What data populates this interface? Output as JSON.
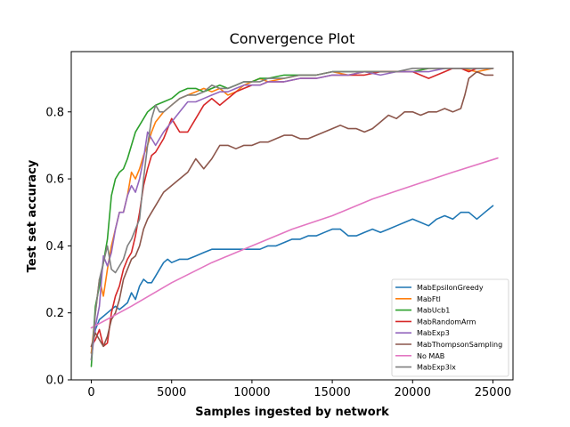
{
  "chart_data": {
    "type": "line",
    "title": "Convergence Plot",
    "xlabel": "Samples ingested by network",
    "ylabel": "Test set accuracy",
    "xlim": [
      -1250,
      26250
    ],
    "ylim": [
      0.0,
      0.98
    ],
    "xticks": [
      0,
      5000,
      10000,
      15000,
      20000,
      25000
    ],
    "yticks": [
      0.0,
      0.2,
      0.4,
      0.6,
      0.8
    ],
    "xtick_labels": [
      "0",
      "5000",
      "10000",
      "15000",
      "20000",
      "25000"
    ],
    "ytick_labels": [
      "0.0",
      "0.2",
      "0.4",
      "0.6",
      "0.8"
    ],
    "grid": false,
    "legend_position": "lower-right",
    "series": [
      {
        "name": "MabEpsilonGreedy",
        "color": "#1f77b4",
        "x": [
          0,
          250,
          500,
          750,
          1000,
          1250,
          1500,
          1750,
          2000,
          2250,
          2500,
          2750,
          3000,
          3250,
          3500,
          3750,
          4000,
          4250,
          4500,
          4750,
          5000,
          5500,
          6000,
          6500,
          7000,
          7500,
          8000,
          8500,
          9000,
          9500,
          10000,
          10500,
          11000,
          11500,
          12000,
          12500,
          13000,
          13500,
          14000,
          14500,
          15000,
          15500,
          16000,
          16500,
          17000,
          17500,
          18000,
          18500,
          19000,
          19500,
          20000,
          20500,
          21000,
          21500,
          22000,
          22500,
          23000,
          23500,
          24000,
          24500,
          25000
        ],
        "y": [
          0.08,
          0.15,
          0.18,
          0.19,
          0.2,
          0.21,
          0.22,
          0.21,
          0.22,
          0.23,
          0.26,
          0.24,
          0.28,
          0.3,
          0.29,
          0.29,
          0.31,
          0.33,
          0.35,
          0.36,
          0.35,
          0.36,
          0.36,
          0.37,
          0.38,
          0.39,
          0.39,
          0.39,
          0.39,
          0.39,
          0.39,
          0.39,
          0.4,
          0.4,
          0.41,
          0.42,
          0.42,
          0.43,
          0.43,
          0.44,
          0.45,
          0.45,
          0.43,
          0.43,
          0.44,
          0.45,
          0.44,
          0.45,
          0.46,
          0.47,
          0.48,
          0.47,
          0.46,
          0.48,
          0.49,
          0.48,
          0.5,
          0.5,
          0.48,
          0.5,
          0.52
        ]
      },
      {
        "name": "MabFtl",
        "color": "#ff7f0e",
        "x": [
          0,
          250,
          500,
          750,
          1000,
          1250,
          1500,
          1750,
          2000,
          2250,
          2500,
          2750,
          3000,
          3250,
          3500,
          3750,
          4000,
          4500,
          5000,
          5500,
          6000,
          6500,
          7000,
          7500,
          8000,
          8500,
          9000,
          9500,
          10000,
          10500,
          11000,
          12000,
          13000,
          14000,
          15000,
          16000,
          17000,
          18000,
          19000,
          20000,
          21000,
          22000,
          23000,
          24000,
          25000
        ],
        "y": [
          0.08,
          0.2,
          0.3,
          0.25,
          0.33,
          0.4,
          0.45,
          0.5,
          0.5,
          0.55,
          0.62,
          0.6,
          0.63,
          0.67,
          0.7,
          0.74,
          0.77,
          0.8,
          0.82,
          0.84,
          0.85,
          0.86,
          0.87,
          0.86,
          0.87,
          0.85,
          0.86,
          0.88,
          0.89,
          0.9,
          0.89,
          0.9,
          0.91,
          0.91,
          0.92,
          0.91,
          0.92,
          0.92,
          0.92,
          0.92,
          0.93,
          0.93,
          0.93,
          0.92,
          0.93
        ]
      },
      {
        "name": "MabUcb1",
        "color": "#2ca02c",
        "x": [
          0,
          250,
          500,
          750,
          1000,
          1250,
          1500,
          1750,
          2000,
          2250,
          2500,
          2750,
          3000,
          3250,
          3500,
          3750,
          4000,
          4500,
          5000,
          5500,
          6000,
          6500,
          7000,
          7500,
          8000,
          8500,
          9000,
          9500,
          10000,
          10500,
          11000,
          12000,
          13000,
          14000,
          15000,
          16000,
          17000,
          18000,
          19000,
          20000,
          21000,
          22000,
          23000,
          24000,
          25000
        ],
        "y": [
          0.04,
          0.22,
          0.28,
          0.35,
          0.42,
          0.55,
          0.6,
          0.62,
          0.63,
          0.66,
          0.7,
          0.74,
          0.76,
          0.78,
          0.8,
          0.81,
          0.82,
          0.83,
          0.84,
          0.86,
          0.87,
          0.87,
          0.86,
          0.87,
          0.88,
          0.87,
          0.88,
          0.89,
          0.89,
          0.9,
          0.9,
          0.91,
          0.91,
          0.91,
          0.92,
          0.92,
          0.92,
          0.92,
          0.92,
          0.92,
          0.93,
          0.93,
          0.93,
          0.93,
          0.93
        ]
      },
      {
        "name": "MabRandomArm",
        "color": "#d62728",
        "x": [
          0,
          250,
          500,
          750,
          1000,
          1250,
          1500,
          1750,
          2000,
          2250,
          2500,
          2750,
          3000,
          3250,
          3500,
          3750,
          4000,
          4500,
          5000,
          5500,
          6000,
          6500,
          7000,
          7500,
          8000,
          8500,
          9000,
          9500,
          10000,
          10500,
          11000,
          12000,
          13000,
          14000,
          15000,
          16000,
          17000,
          18000,
          19000,
          20000,
          20500,
          21000,
          21500,
          22000,
          22500,
          23000,
          23500,
          24000,
          24500,
          25000
        ],
        "y": [
          0.1,
          0.12,
          0.15,
          0.1,
          0.11,
          0.2,
          0.25,
          0.28,
          0.33,
          0.36,
          0.38,
          0.43,
          0.5,
          0.58,
          0.63,
          0.67,
          0.68,
          0.72,
          0.78,
          0.74,
          0.74,
          0.78,
          0.82,
          0.84,
          0.82,
          0.84,
          0.86,
          0.87,
          0.88,
          0.88,
          0.89,
          0.89,
          0.9,
          0.9,
          0.91,
          0.91,
          0.91,
          0.92,
          0.92,
          0.92,
          0.91,
          0.9,
          0.91,
          0.92,
          0.93,
          0.93,
          0.92,
          0.93,
          0.93,
          0.93
        ]
      },
      {
        "name": "MabExp3",
        "color": "#9467bd",
        "x": [
          0,
          250,
          500,
          750,
          1000,
          1250,
          1500,
          1750,
          2000,
          2250,
          2500,
          2750,
          3000,
          3250,
          3500,
          3750,
          4000,
          4500,
          5000,
          5500,
          6000,
          6500,
          7000,
          7500,
          8000,
          8500,
          9000,
          9500,
          10000,
          10500,
          11000,
          12000,
          13000,
          14000,
          15000,
          16000,
          17000,
          18000,
          19000,
          20000,
          21000,
          22000,
          23000,
          24000,
          25000
        ],
        "y": [
          0.06,
          0.16,
          0.22,
          0.37,
          0.34,
          0.38,
          0.45,
          0.5,
          0.5,
          0.55,
          0.58,
          0.56,
          0.6,
          0.66,
          0.74,
          0.72,
          0.7,
          0.74,
          0.77,
          0.8,
          0.83,
          0.83,
          0.84,
          0.85,
          0.86,
          0.86,
          0.87,
          0.88,
          0.88,
          0.88,
          0.89,
          0.89,
          0.9,
          0.9,
          0.91,
          0.91,
          0.92,
          0.91,
          0.92,
          0.92,
          0.92,
          0.93,
          0.93,
          0.93,
          0.93
        ]
      },
      {
        "name": "MabThompsonSampling",
        "color": "#8c564b",
        "x": [
          0,
          250,
          500,
          750,
          1000,
          1250,
          1500,
          1750,
          2000,
          2250,
          2500,
          2750,
          3000,
          3250,
          3500,
          3750,
          4000,
          4500,
          5000,
          5500,
          6000,
          6500,
          7000,
          7500,
          8000,
          8500,
          9000,
          9500,
          10000,
          10500,
          11000,
          11500,
          12000,
          12500,
          13000,
          13500,
          14000,
          14500,
          15000,
          15500,
          16000,
          16500,
          17000,
          17500,
          18000,
          18500,
          19000,
          19500,
          20000,
          20500,
          21000,
          21500,
          22000,
          22500,
          23000,
          23250,
          23500,
          24000,
          24500,
          25000
        ],
        "y": [
          0.1,
          0.14,
          0.12,
          0.1,
          0.13,
          0.18,
          0.2,
          0.24,
          0.3,
          0.33,
          0.36,
          0.37,
          0.4,
          0.45,
          0.48,
          0.5,
          0.52,
          0.56,
          0.58,
          0.6,
          0.62,
          0.66,
          0.63,
          0.66,
          0.7,
          0.7,
          0.69,
          0.7,
          0.7,
          0.71,
          0.71,
          0.72,
          0.73,
          0.73,
          0.72,
          0.72,
          0.73,
          0.74,
          0.75,
          0.76,
          0.75,
          0.75,
          0.74,
          0.75,
          0.77,
          0.79,
          0.78,
          0.8,
          0.8,
          0.79,
          0.8,
          0.8,
          0.81,
          0.8,
          0.81,
          0.85,
          0.9,
          0.92,
          0.91,
          0.91
        ]
      },
      {
        "name": "No MAB",
        "color": "#e377c2",
        "x": [
          0,
          2500,
          5000,
          7500,
          10000,
          12500,
          15000,
          17500,
          20000,
          22500,
          25300
        ],
        "y": [
          0.155,
          0.22,
          0.29,
          0.35,
          0.4,
          0.45,
          0.49,
          0.54,
          0.58,
          0.62,
          0.662
        ]
      },
      {
        "name": "MabExp3lx",
        "color": "#7f7f7f",
        "x": [
          0,
          250,
          500,
          750,
          1000,
          1250,
          1500,
          1750,
          2000,
          2250,
          2500,
          2750,
          3000,
          3250,
          3500,
          3750,
          4000,
          4250,
          4500,
          5000,
          5500,
          6000,
          6500,
          7000,
          7500,
          8000,
          8500,
          9000,
          9500,
          10000,
          10500,
          11000,
          12000,
          13000,
          14000,
          15000,
          16000,
          17000,
          18000,
          19000,
          20000,
          21000,
          22000,
          23000,
          24000,
          25000
        ],
        "y": [
          0.06,
          0.2,
          0.3,
          0.35,
          0.4,
          0.33,
          0.32,
          0.34,
          0.36,
          0.4,
          0.42,
          0.45,
          0.48,
          0.6,
          0.7,
          0.78,
          0.82,
          0.8,
          0.8,
          0.82,
          0.84,
          0.85,
          0.85,
          0.86,
          0.88,
          0.87,
          0.87,
          0.88,
          0.89,
          0.89,
          0.89,
          0.9,
          0.9,
          0.91,
          0.91,
          0.92,
          0.92,
          0.92,
          0.92,
          0.92,
          0.93,
          0.93,
          0.93,
          0.93,
          0.93,
          0.93
        ]
      }
    ]
  }
}
